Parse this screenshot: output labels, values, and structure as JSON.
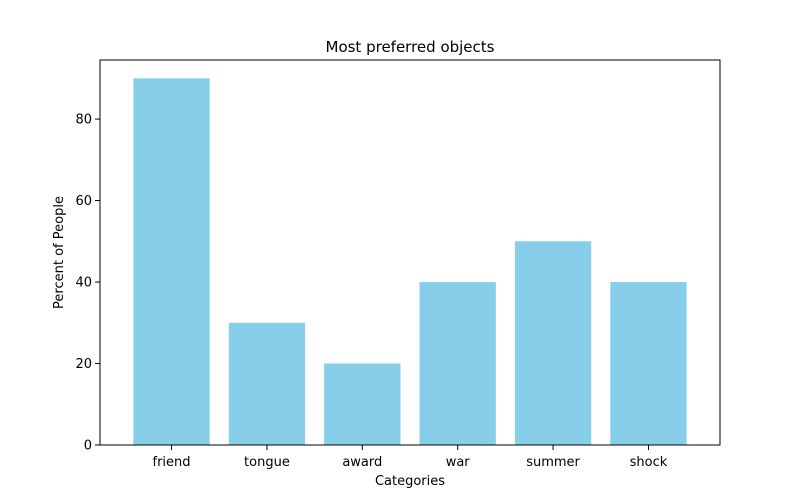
{
  "chart_data": {
    "type": "bar",
    "title": "Most preferred objects",
    "xlabel": "Categories",
    "ylabel": "Percent of People",
    "categories": [
      "friend",
      "tongue",
      "award",
      "war",
      "summer",
      "shock"
    ],
    "values": [
      90,
      30,
      20,
      40,
      50,
      40
    ],
    "ylim": [
      0,
      94.5
    ],
    "yticks": [
      0,
      20,
      40,
      60,
      80
    ],
    "bar_color": "#87CEEB",
    "grid": false,
    "legend": "none"
  }
}
